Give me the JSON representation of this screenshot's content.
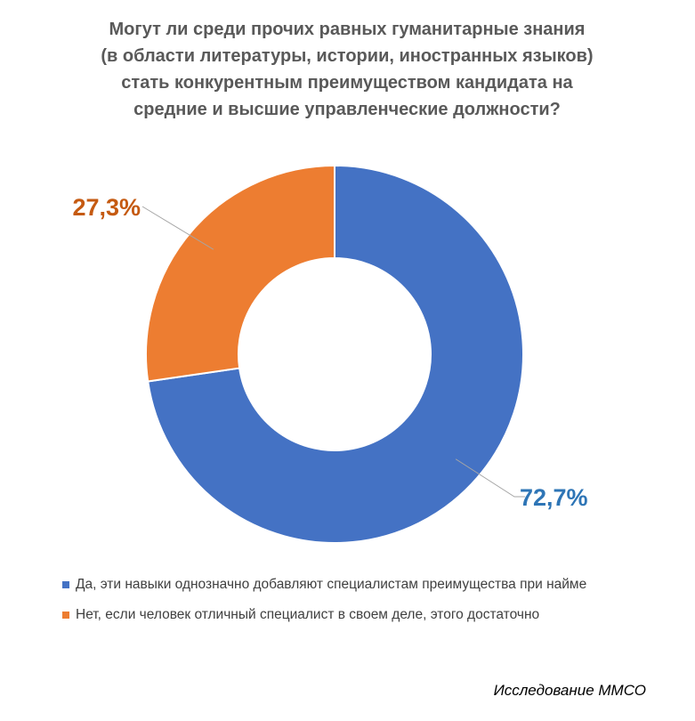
{
  "chart_data": {
    "type": "pie",
    "variant": "donut",
    "title_lines": [
      "Могут ли среди прочих равных гуманитарные знания",
      "(в области литературы, истории, иностранных языков)",
      "стать конкурентным преимуществом кандидата на",
      "средние и высшие управленческие должности?"
    ],
    "categories": [
      "Да, эти навыки однозначно добавляют специалистам преимущества при найме",
      "Нет, если человек отличный специалист в своем деле, этого достаточно"
    ],
    "values": [
      72.7,
      27.3
    ],
    "data_labels": [
      "72,7%",
      "27,3%"
    ],
    "colors": [
      "#4472c4",
      "#ed7d31"
    ],
    "label_colors": [
      "#2e75b6",
      "#c55a11"
    ],
    "legend_position": "bottom",
    "source": "Исследование ММСО"
  }
}
